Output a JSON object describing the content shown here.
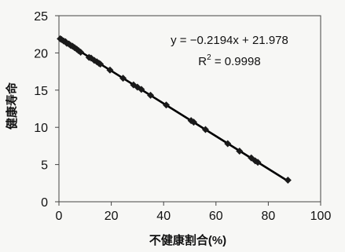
{
  "chart_data": {
    "type": "scatter",
    "title": "",
    "xlabel": "不健康割合(%)",
    "ylabel": "健康寿命",
    "xlim": [
      0,
      100
    ],
    "ylim": [
      0,
      25
    ],
    "xticks": [
      0,
      20,
      40,
      60,
      80,
      100
    ],
    "yticks": [
      0,
      5,
      10,
      15,
      20,
      25
    ],
    "xtick_labels": [
      "0",
      "20",
      "40",
      "60",
      "80",
      "100"
    ],
    "ytick_labels": [
      "0",
      "5",
      "10",
      "15",
      "20",
      "25"
    ],
    "grid": false,
    "marker": "diamond",
    "marker_color": "#1a1a1a",
    "line_color": "#000000",
    "trendline": {
      "slope": -0.2194,
      "intercept": 21.978,
      "equation": "y = −0.2194x + 21.978",
      "r2_label": "R",
      "r2_exponent": "2",
      "r2_value": " = 0.9998"
    },
    "points": [
      {
        "x": 0.5,
        "y": 21.9
      },
      {
        "x": 1.0,
        "y": 21.8
      },
      {
        "x": 1.8,
        "y": 21.6
      },
      {
        "x": 2.5,
        "y": 21.5
      },
      {
        "x": 3.0,
        "y": 21.3
      },
      {
        "x": 3.8,
        "y": 21.2
      },
      {
        "x": 4.5,
        "y": 21.0
      },
      {
        "x": 5.2,
        "y": 20.9
      },
      {
        "x": 6.0,
        "y": 20.7
      },
      {
        "x": 6.8,
        "y": 20.5
      },
      {
        "x": 7.5,
        "y": 20.3
      },
      {
        "x": 8.3,
        "y": 20.1
      },
      {
        "x": 11.5,
        "y": 19.4
      },
      {
        "x": 12.3,
        "y": 19.3
      },
      {
        "x": 13.5,
        "y": 19.0
      },
      {
        "x": 14.5,
        "y": 18.8
      },
      {
        "x": 15.3,
        "y": 18.6
      },
      {
        "x": 15.8,
        "y": 18.5
      },
      {
        "x": 19.5,
        "y": 17.7
      },
      {
        "x": 24.5,
        "y": 16.6
      },
      {
        "x": 28.5,
        "y": 15.7
      },
      {
        "x": 30.0,
        "y": 15.4
      },
      {
        "x": 31.5,
        "y": 15.1
      },
      {
        "x": 35.0,
        "y": 14.3
      },
      {
        "x": 41.0,
        "y": 13.0
      },
      {
        "x": 50.5,
        "y": 10.9
      },
      {
        "x": 51.5,
        "y": 10.7
      },
      {
        "x": 56.0,
        "y": 9.7
      },
      {
        "x": 64.5,
        "y": 7.8
      },
      {
        "x": 69.0,
        "y": 6.8
      },
      {
        "x": 73.5,
        "y": 5.9
      },
      {
        "x": 75.0,
        "y": 5.5
      },
      {
        "x": 76.0,
        "y": 5.3
      },
      {
        "x": 87.5,
        "y": 2.9
      }
    ]
  }
}
